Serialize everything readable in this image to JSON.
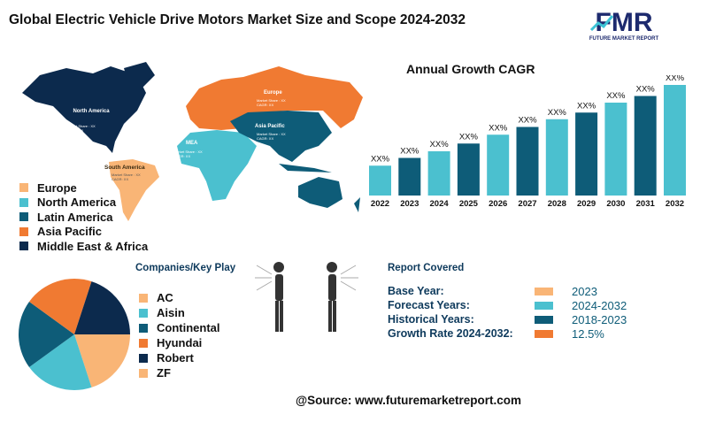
{
  "title": "Global Electric Vehicle Drive Motors Market Size and Scope 2024-2032",
  "logo": {
    "letters": "FMR",
    "tagline": "FUTURE MARKET REPORT"
  },
  "colors": {
    "peach": "#f9b576",
    "light_teal": "#4bc0cf",
    "dark_teal": "#0e5c78",
    "orange": "#f07a32",
    "navy": "#0c2a4d"
  },
  "map": {
    "regions": [
      {
        "name": "North America",
        "share": "Market Share : XX",
        "cagr": "CAGR: XX",
        "color": "#0c2a4d"
      },
      {
        "name": "Europe",
        "share": "Market Share : XX",
        "cagr": "CAGR: XX",
        "color": "#f07a32"
      },
      {
        "name": "Asia Pacific",
        "share": "Market Share : XX",
        "cagr": "CAGR: XX",
        "color": "#0e5c78"
      },
      {
        "name": "MEA",
        "share": "Market Share : XX",
        "cagr": "CAGR: XX",
        "color": "#4bc0cf"
      },
      {
        "name": "South America",
        "share": "Market Share : XX",
        "cagr": "CAGR: XX",
        "color": "#f9b576"
      }
    ],
    "legend": [
      {
        "label": "Europe",
        "color": "#f9b576"
      },
      {
        "label": "North America",
        "color": "#4bc0cf"
      },
      {
        "label": "Latin America",
        "color": "#0e5c78"
      },
      {
        "label": "Asia Pacific",
        "color": "#f07a32"
      },
      {
        "label": "Middle East & Africa",
        "color": "#0c2a4d"
      }
    ]
  },
  "chart_data": [
    {
      "type": "bar",
      "title": "Annual Growth CAGR",
      "categories": [
        "2022",
        "2023",
        "2024",
        "2025",
        "2026",
        "2027",
        "2028",
        "2029",
        "2030",
        "2031",
        "2032"
      ],
      "data_labels": [
        "XX%",
        "XX%",
        "XX%",
        "XX%",
        "XX%",
        "XX%",
        "XX%",
        "XX%",
        "XX%",
        "XX%",
        "XX%"
      ],
      "relative_values": [
        27,
        34,
        40,
        47,
        55,
        62,
        69,
        75,
        84,
        90,
        100
      ],
      "colors": [
        "#4bc0cf",
        "#0e5c78",
        "#4bc0cf",
        "#0e5c78",
        "#4bc0cf",
        "#0e5c78",
        "#4bc0cf",
        "#0e5c78",
        "#4bc0cf",
        "#0e5c78",
        "#4bc0cf"
      ],
      "grid": false
    },
    {
      "type": "pie",
      "title": "Companies/Key Play",
      "slices": [
        {
          "label": "AC",
          "value": 20,
          "color": "#f9b576"
        },
        {
          "label": "Aisin",
          "value": 20,
          "color": "#4bc0cf"
        },
        {
          "label": "Continental",
          "value": 20,
          "color": "#0e5c78"
        },
        {
          "label": "Hyundai",
          "value": 20,
          "color": "#f07a32"
        },
        {
          "label": "Robert",
          "value": 20,
          "color": "#0c2a4d"
        },
        {
          "label": "ZF",
          "value": 0,
          "color": "#f9b576"
        }
      ],
      "legend_placement": "right"
    }
  ],
  "report": {
    "title": "Report Covered",
    "rows": [
      {
        "label": "Base Year:",
        "value": "2023",
        "color": "#f9b576"
      },
      {
        "label": "Forecast Years:",
        "value": "2024-2032",
        "color": "#4bc0cf"
      },
      {
        "label": "Historical Years:",
        "value": "2018-2023",
        "color": "#0e5c78"
      },
      {
        "label": "Growth Rate 2024-2032:",
        "value": "12.5%",
        "color": "#f07a32"
      }
    ]
  },
  "source": "@Source: www.futuremarketreport.com"
}
